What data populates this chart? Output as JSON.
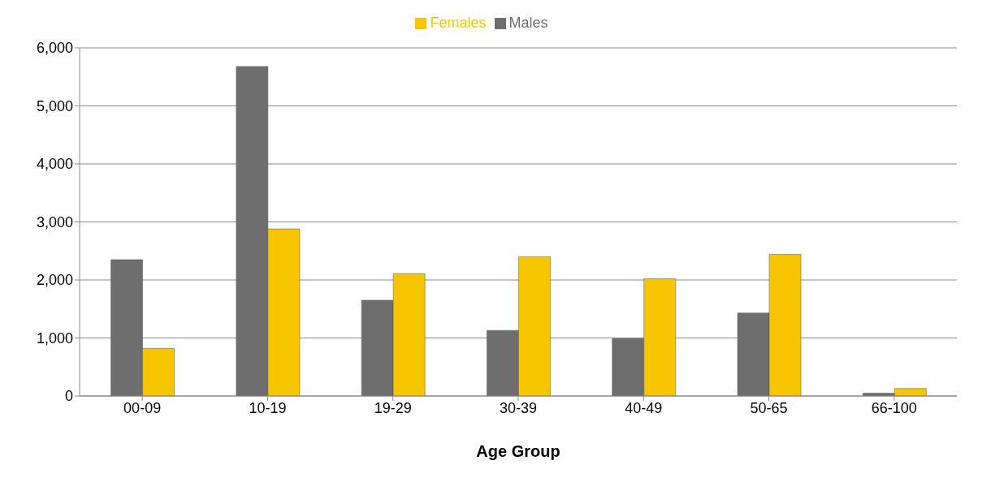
{
  "chart_data": {
    "type": "bar",
    "xlabel": "Age Group",
    "categories": [
      "00-09",
      "10-19",
      "19-29",
      "30-39",
      "40-49",
      "50-65",
      "66-100"
    ],
    "series": [
      {
        "name": "Males",
        "color": "#6e6e6e",
        "values": [
          2350,
          5680,
          1650,
          1130,
          990,
          1430,
          50
        ]
      },
      {
        "name": "Females",
        "color": "#f7c600",
        "values": [
          820,
          2880,
          2110,
          2400,
          2020,
          2440,
          130
        ]
      }
    ],
    "ylim": [
      0,
      6000
    ],
    "yticks": [
      0,
      {
        "value": 1000,
        "label": "1,000"
      },
      {
        "value": 2000,
        "label": "2,000"
      },
      {
        "value": 3000,
        "label": "3,000"
      },
      {
        "value": 4000,
        "label": "4,000"
      },
      {
        "value": 5000,
        "label": "5,000"
      },
      {
        "value": 6000,
        "label": "6,000"
      }
    ],
    "grid": "y",
    "legend": "top"
  }
}
